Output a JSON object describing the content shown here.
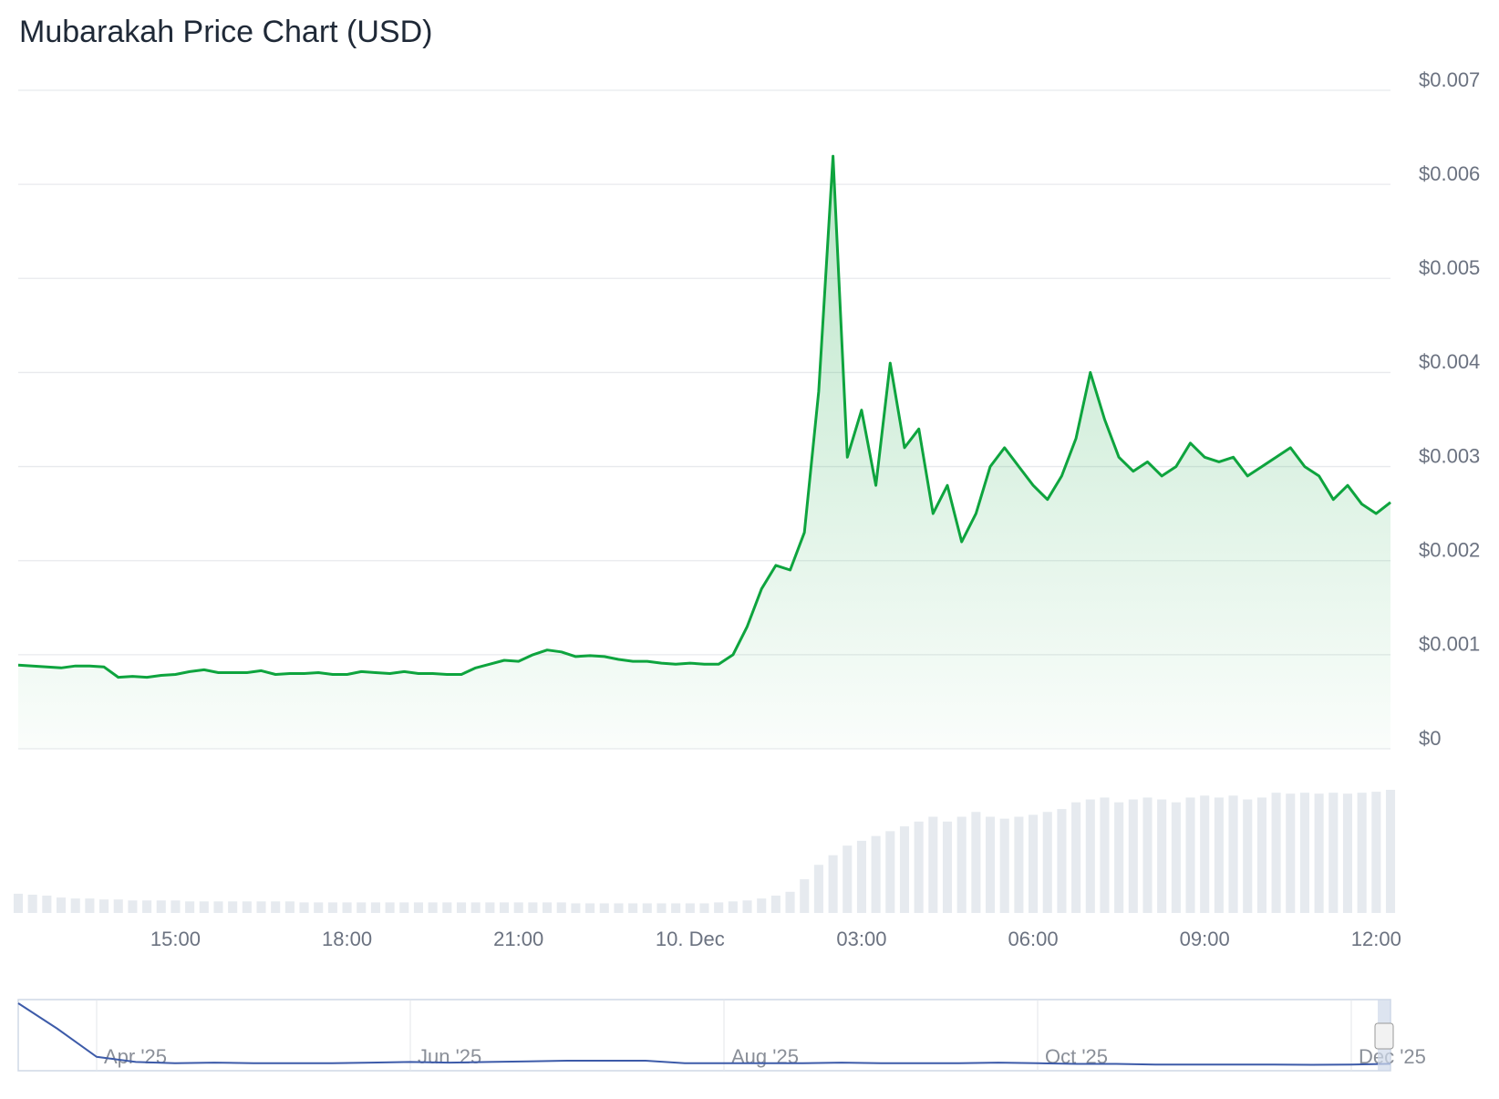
{
  "chart_data": [
    {
      "type": "line",
      "title": "Mubarakah Price Chart (USD)",
      "categories": [
        null,
        null,
        null,
        null,
        null,
        null,
        null,
        null,
        null,
        null,
        null,
        "15:00",
        null,
        null,
        null,
        null,
        null,
        null,
        null,
        null,
        null,
        null,
        null,
        "18:00",
        null,
        null,
        null,
        null,
        null,
        null,
        null,
        null,
        null,
        null,
        null,
        "21:00",
        null,
        null,
        null,
        null,
        null,
        null,
        null,
        null,
        null,
        null,
        null,
        "10. Dec",
        null,
        null,
        null,
        null,
        null,
        null,
        null,
        null,
        null,
        null,
        null,
        "03:00",
        null,
        null,
        null,
        null,
        null,
        null,
        null,
        null,
        null,
        null,
        null,
        "06:00",
        null,
        null,
        null,
        null,
        null,
        null,
        null,
        null,
        null,
        null,
        null,
        "09:00",
        null,
        null,
        null,
        null,
        null,
        null,
        null,
        null,
        null,
        null,
        null,
        "12:00",
        null
      ],
      "values": [
        0.00089,
        0.00088,
        0.00087,
        0.00086,
        0.00088,
        0.00088,
        0.00087,
        0.00076,
        0.00077,
        0.00076,
        0.00078,
        0.00079,
        0.00082,
        0.00084,
        0.00081,
        0.00081,
        0.00081,
        0.00083,
        0.00079,
        0.0008,
        0.0008,
        0.00081,
        0.00079,
        0.00079,
        0.00082,
        0.00081,
        0.0008,
        0.00082,
        0.0008,
        0.0008,
        0.00079,
        0.00079,
        0.00086,
        0.0009,
        0.00094,
        0.00093,
        0.001,
        0.00105,
        0.00103,
        0.00098,
        0.00099,
        0.00098,
        0.00095,
        0.00093,
        0.00093,
        0.00091,
        0.0009,
        0.00091,
        0.0009,
        0.0009,
        0.001,
        0.0013,
        0.0017,
        0.00195,
        0.0019,
        0.0023,
        0.0038,
        0.0063,
        0.0031,
        0.0036,
        0.0028,
        0.0041,
        0.0032,
        0.0034,
        0.0025,
        0.0028,
        0.0022,
        0.0025,
        0.003,
        0.0032,
        0.003,
        0.0028,
        0.00265,
        0.0029,
        0.0033,
        0.004,
        0.0035,
        0.0031,
        0.00295,
        0.00305,
        0.0029,
        0.003,
        0.00325,
        0.0031,
        0.00305,
        0.0031,
        0.0029,
        0.003,
        0.0031,
        0.0032,
        0.003,
        0.0029,
        0.00265,
        0.0028,
        0.0026,
        0.0025,
        0.00262
      ],
      "color": "#0ea43e",
      "volumes": [
        20,
        19,
        18,
        16,
        15,
        15,
        14,
        14,
        13,
        13,
        13,
        13,
        12,
        12,
        12,
        12,
        12,
        12,
        12,
        12,
        11,
        11,
        11,
        11,
        11,
        11,
        11,
        11,
        11,
        11,
        11,
        11,
        11,
        11,
        11,
        11,
        11,
        11,
        11,
        10,
        10,
        10,
        10,
        10,
        10,
        10,
        10,
        10,
        10,
        11,
        12,
        13,
        15,
        18,
        22,
        35,
        50,
        60,
        70,
        75,
        80,
        85,
        90,
        95,
        100,
        95,
        100,
        105,
        100,
        98,
        100,
        102,
        105,
        108,
        115,
        118,
        120,
        115,
        118,
        120,
        118,
        115,
        120,
        122,
        120,
        122,
        118,
        120,
        125,
        124,
        125,
        124,
        125,
        124,
        125,
        126,
        128
      ],
      "volume_color": "#e6eaef",
      "ylim": [
        0,
        0.007
      ],
      "yticks": [
        {
          "value": 0,
          "label": "$0"
        },
        {
          "value": 0.001,
          "label": "$0.001"
        },
        {
          "value": 0.002,
          "label": "$0.002"
        },
        {
          "value": 0.003,
          "label": "$0.003"
        },
        {
          "value": 0.004,
          "label": "$0.004"
        },
        {
          "value": 0.005,
          "label": "$0.005"
        },
        {
          "value": 0.006,
          "label": "$0.006"
        },
        {
          "value": 0.007,
          "label": "$0.007"
        }
      ],
      "grid": true
    },
    {
      "type": "line",
      "categories": [
        null,
        null,
        "Apr '25",
        null,
        null,
        null,
        null,
        null,
        null,
        null,
        "Jun '25",
        null,
        null,
        null,
        null,
        null,
        null,
        null,
        "Aug '25",
        null,
        null,
        null,
        null,
        null,
        null,
        null,
        "Oct '25",
        null,
        null,
        null,
        null,
        null,
        null,
        null,
        "Dec '25",
        null
      ],
      "values": [
        0.05,
        0.03,
        0.008,
        0.004,
        0.003,
        0.0035,
        0.003,
        0.003,
        0.003,
        0.0035,
        0.004,
        0.0035,
        0.004,
        0.0045,
        0.005,
        0.005,
        0.005,
        0.003,
        0.003,
        0.003,
        0.003,
        0.0035,
        0.003,
        0.003,
        0.003,
        0.0035,
        0.003,
        0.0025,
        0.0025,
        0.002,
        0.002,
        0.002,
        0.002,
        0.0018,
        0.002,
        0.0026
      ],
      "color": "#3d5ba9"
    }
  ]
}
